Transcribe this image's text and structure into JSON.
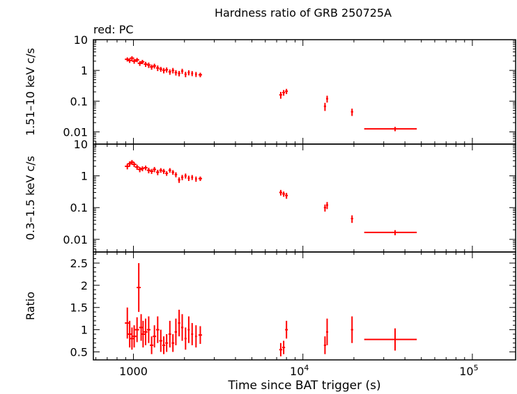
{
  "chart_data": {
    "type": "scatter",
    "title": "Hardness ratio of GRB 250725A",
    "annotation": "red: PC",
    "xlabel": "Time since BAT trigger (s)",
    "x_scale": "log",
    "xlim": [
      580,
      180000
    ],
    "x_ticks": [
      {
        "value": 1000,
        "label": "1000"
      },
      {
        "value": 10000,
        "label": "10",
        "sup": "4"
      },
      {
        "value": 100000,
        "label": "10",
        "sup": "5"
      }
    ],
    "series_color": "#ff0000",
    "panels": [
      {
        "ylabel": "1.51–10 keV c/s",
        "y_scale": "log",
        "ylim": [
          0.004,
          10
        ],
        "y_ticks": [
          {
            "value": 10,
            "label": "10"
          },
          {
            "value": 1,
            "label": "1"
          },
          {
            "value": 0.1,
            "label": "0.1"
          },
          {
            "value": 0.01,
            "label": "0.01"
          }
        ],
        "points": [
          [
            920,
            2.3,
            30,
            0.35
          ],
          [
            950,
            2.1,
            30,
            0.35
          ],
          [
            980,
            2.5,
            30,
            0.4
          ],
          [
            1010,
            2.0,
            30,
            0.35
          ],
          [
            1050,
            2.2,
            30,
            0.35
          ],
          [
            1090,
            1.7,
            30,
            0.3
          ],
          [
            1130,
            1.9,
            30,
            0.3
          ],
          [
            1180,
            1.6,
            30,
            0.3
          ],
          [
            1230,
            1.5,
            30,
            0.3
          ],
          [
            1280,
            1.3,
            30,
            0.25
          ],
          [
            1330,
            1.4,
            30,
            0.25
          ],
          [
            1390,
            1.2,
            30,
            0.25
          ],
          [
            1450,
            1.1,
            30,
            0.2
          ],
          [
            1510,
            1.0,
            30,
            0.2
          ],
          [
            1570,
            1.05,
            30,
            0.2
          ],
          [
            1640,
            0.9,
            30,
            0.18
          ],
          [
            1710,
            1.0,
            30,
            0.2
          ],
          [
            1780,
            0.85,
            30,
            0.17
          ],
          [
            1860,
            0.8,
            30,
            0.16
          ],
          [
            1940,
            0.95,
            30,
            0.18
          ],
          [
            2030,
            0.75,
            30,
            0.15
          ],
          [
            2120,
            0.85,
            30,
            0.16
          ],
          [
            2220,
            0.8,
            30,
            0.15
          ],
          [
            2340,
            0.75,
            30,
            0.14
          ],
          [
            2480,
            0.72,
            60,
            0.12
          ],
          [
            7400,
            0.16,
            150,
            0.04
          ],
          [
            7700,
            0.19,
            150,
            0.04
          ],
          [
            8000,
            0.21,
            150,
            0.04
          ],
          [
            13500,
            0.068,
            200,
            0.02
          ],
          [
            13900,
            0.12,
            200,
            0.03
          ],
          [
            19500,
            0.045,
            300,
            0.012
          ],
          [
            35000,
            0.0125,
            12000,
            0.002
          ]
        ]
      },
      {
        "ylabel": "0.3–1.5 keV c/s",
        "y_scale": "log",
        "ylim": [
          0.004,
          10
        ],
        "y_ticks": [
          {
            "value": 10,
            "label": "10"
          },
          {
            "value": 1,
            "label": "1"
          },
          {
            "value": 0.1,
            "label": "0.1"
          },
          {
            "value": 0.01,
            "label": "0.01"
          }
        ],
        "points": [
          [
            920,
            2.0,
            30,
            0.4
          ],
          [
            950,
            2.4,
            30,
            0.45
          ],
          [
            980,
            2.7,
            30,
            0.45
          ],
          [
            1010,
            2.3,
            30,
            0.4
          ],
          [
            1050,
            1.9,
            30,
            0.35
          ],
          [
            1090,
            1.6,
            30,
            0.3
          ],
          [
            1130,
            1.7,
            30,
            0.3
          ],
          [
            1180,
            1.8,
            30,
            0.3
          ],
          [
            1230,
            1.5,
            30,
            0.3
          ],
          [
            1280,
            1.4,
            30,
            0.25
          ],
          [
            1330,
            1.6,
            30,
            0.3
          ],
          [
            1390,
            1.3,
            30,
            0.25
          ],
          [
            1450,
            1.5,
            30,
            0.25
          ],
          [
            1510,
            1.4,
            30,
            0.25
          ],
          [
            1570,
            1.2,
            30,
            0.2
          ],
          [
            1640,
            1.5,
            30,
            0.25
          ],
          [
            1710,
            1.3,
            30,
            0.22
          ],
          [
            1780,
            1.1,
            30,
            0.2
          ],
          [
            1860,
            0.75,
            30,
            0.15
          ],
          [
            1940,
            0.9,
            30,
            0.17
          ],
          [
            2030,
            1.0,
            30,
            0.18
          ],
          [
            2120,
            0.85,
            30,
            0.16
          ],
          [
            2220,
            0.9,
            30,
            0.16
          ],
          [
            2340,
            0.8,
            30,
            0.15
          ],
          [
            2480,
            0.82,
            60,
            0.13
          ],
          [
            7400,
            0.3,
            150,
            0.06
          ],
          [
            7700,
            0.27,
            150,
            0.05
          ],
          [
            8000,
            0.24,
            150,
            0.05
          ],
          [
            13500,
            0.1,
            200,
            0.025
          ],
          [
            13900,
            0.12,
            200,
            0.03
          ],
          [
            19500,
            0.045,
            300,
            0.012
          ],
          [
            35000,
            0.0165,
            12000,
            0.003
          ]
        ]
      },
      {
        "ylabel": "Ratio",
        "y_scale": "linear",
        "ylim": [
          0.32,
          2.75
        ],
        "y_ticks": [
          {
            "value": 2.5,
            "label": "2.5"
          },
          {
            "value": 2,
            "label": "2"
          },
          {
            "value": 1.5,
            "label": "1.5"
          },
          {
            "value": 1,
            "label": "1"
          },
          {
            "value": 0.5,
            "label": "0.5"
          }
        ],
        "points": [
          [
            920,
            1.15,
            30,
            0.35
          ],
          [
            950,
            0.9,
            30,
            0.3
          ],
          [
            980,
            0.8,
            30,
            0.25
          ],
          [
            1010,
            0.85,
            30,
            0.25
          ],
          [
            1050,
            1.0,
            30,
            0.28
          ],
          [
            1075,
            1.95,
            30,
            0.55
          ],
          [
            1110,
            1.05,
            30,
            0.3
          ],
          [
            1140,
            0.9,
            30,
            0.3
          ],
          [
            1180,
            0.95,
            30,
            0.3
          ],
          [
            1230,
            1.0,
            30,
            0.3
          ],
          [
            1280,
            0.65,
            30,
            0.2
          ],
          [
            1330,
            0.85,
            30,
            0.25
          ],
          [
            1390,
            1.0,
            30,
            0.3
          ],
          [
            1450,
            0.75,
            30,
            0.25
          ],
          [
            1510,
            0.65,
            30,
            0.2
          ],
          [
            1570,
            0.7,
            30,
            0.2
          ],
          [
            1640,
            0.9,
            30,
            0.3
          ],
          [
            1710,
            0.7,
            30,
            0.2
          ],
          [
            1780,
            0.95,
            30,
            0.3
          ],
          [
            1860,
            1.15,
            30,
            0.3
          ],
          [
            1940,
            1.05,
            30,
            0.3
          ],
          [
            2030,
            0.8,
            30,
            0.25
          ],
          [
            2120,
            1.0,
            30,
            0.3
          ],
          [
            2220,
            0.9,
            30,
            0.25
          ],
          [
            2340,
            0.85,
            30,
            0.25
          ],
          [
            2480,
            0.88,
            60,
            0.2
          ],
          [
            7400,
            0.55,
            150,
            0.15
          ],
          [
            7700,
            0.6,
            150,
            0.15
          ],
          [
            8000,
            1.0,
            150,
            0.2
          ],
          [
            13500,
            0.65,
            200,
            0.2
          ],
          [
            13900,
            0.95,
            200,
            0.3
          ],
          [
            19500,
            1.0,
            300,
            0.3
          ],
          [
            35000,
            0.78,
            12000,
            0.25
          ]
        ]
      }
    ]
  }
}
